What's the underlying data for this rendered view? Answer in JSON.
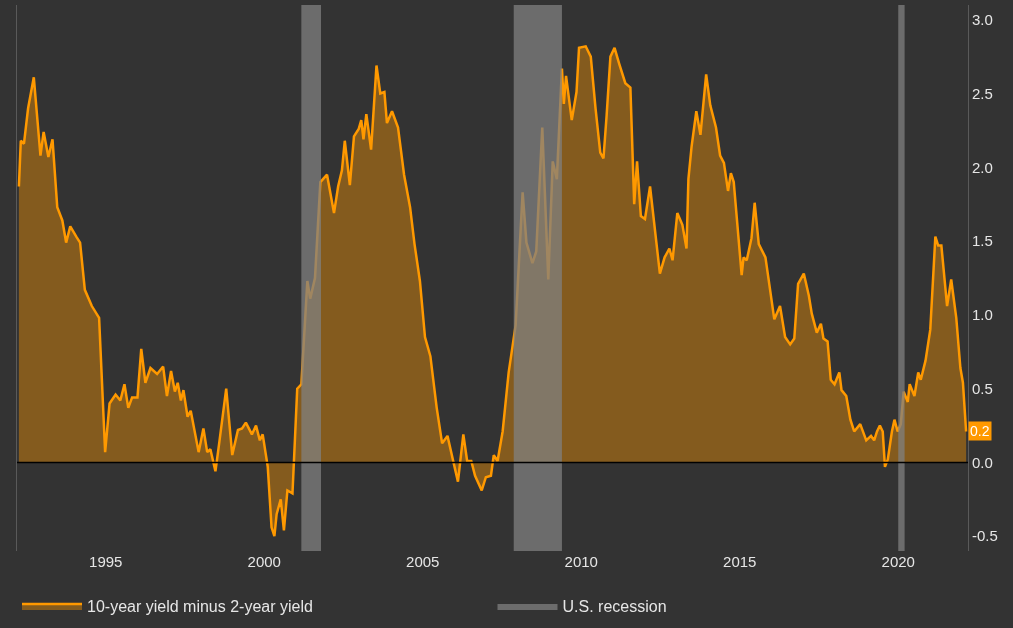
{
  "chart_data": {
    "type": "area",
    "x": [
      1992.26,
      1992.32,
      1992.42,
      1992.55,
      1992.73,
      1992.94,
      1993.04,
      1993.19,
      1993.32,
      1993.47,
      1993.63,
      1993.75,
      1993.88,
      1994.07,
      1994.19,
      1994.34,
      1994.56,
      1994.79,
      1994.98,
      1995.12,
      1995.31,
      1995.46,
      1995.59,
      1995.71,
      1995.83,
      1996.0,
      1996.12,
      1996.25,
      1996.41,
      1996.62,
      1996.81,
      1996.93,
      1997.06,
      1997.18,
      1997.27,
      1997.37,
      1997.45,
      1997.58,
      1997.68,
      1997.93,
      1998.08,
      1998.2,
      1998.3,
      1998.46,
      1998.59,
      1998.8,
      1998.99,
      1999.17,
      1999.3,
      1999.42,
      1999.61,
      1999.74,
      1999.86,
      1999.95,
      2000.11,
      2000.23,
      2000.32,
      2000.39,
      2000.52,
      2000.62,
      2000.73,
      2000.89,
      2001.04,
      2001.17,
      2001.36,
      2001.45,
      2001.6,
      2001.77,
      2001.98,
      2002.2,
      2002.33,
      2002.45,
      2002.54,
      2002.7,
      2002.83,
      2002.98,
      2003.06,
      2003.13,
      2003.22,
      2003.37,
      2003.54,
      2003.66,
      2003.79,
      2003.87,
      2004.03,
      2004.22,
      2004.41,
      2004.6,
      2004.74,
      2004.91,
      2005.07,
      2005.24,
      2005.44,
      2005.61,
      2005.78,
      2005.96,
      2006.11,
      2006.28,
      2006.4,
      2006.53,
      2006.65,
      2006.86,
      2006.99,
      2007.15,
      2007.24,
      2007.36,
      2007.52,
      2007.71,
      2007.93,
      2008.15,
      2008.27,
      2008.46,
      2008.58,
      2008.77,
      2008.96,
      2009.1,
      2009.23,
      2009.39,
      2009.45,
      2009.52,
      2009.7,
      2009.85,
      2009.93,
      2010.14,
      2010.3,
      2010.45,
      2010.6,
      2010.7,
      2010.8,
      2010.92,
      2011.05,
      2011.2,
      2011.39,
      2011.55,
      2011.67,
      2011.76,
      2011.88,
      2012.01,
      2012.17,
      2012.48,
      2012.63,
      2012.78,
      2012.88,
      2013.03,
      2013.19,
      2013.32,
      2013.38,
      2013.48,
      2013.63,
      2013.76,
      2013.94,
      2014.07,
      2014.25,
      2014.38,
      2014.5,
      2014.63,
      2014.72,
      2014.81,
      2015.06,
      2015.12,
      2015.22,
      2015.37,
      2015.47,
      2015.6,
      2015.81,
      2015.93,
      2016.09,
      2016.27,
      2016.43,
      2016.59,
      2016.72,
      2016.84,
      2017.02,
      2017.18,
      2017.27,
      2017.43,
      2017.56,
      2017.64,
      2017.77,
      2017.87,
      2017.99,
      2018.14,
      2018.21,
      2018.36,
      2018.49,
      2018.61,
      2018.8,
      2018.99,
      2019.14,
      2019.24,
      2019.33,
      2019.42,
      2019.51,
      2019.58,
      2019.67,
      2019.8,
      2019.88,
      2019.98,
      2020.08,
      2020.17,
      2020.3,
      2020.36,
      2020.51,
      2020.63,
      2020.71,
      2020.86,
      2021.01,
      2021.17,
      2021.26,
      2021.36,
      2021.54,
      2021.67,
      2021.83,
      2021.96,
      2022.04,
      2022.14
    ],
    "series": [
      {
        "name": "10-year yield minus 2-year yield",
        "color": "#ff9900",
        "values": [
          1.87,
          2.18,
          2.16,
          2.4,
          2.61,
          2.08,
          2.24,
          2.07,
          2.19,
          1.73,
          1.64,
          1.49,
          1.6,
          1.53,
          1.49,
          1.17,
          1.06,
          0.98,
          0.07,
          0.4,
          0.46,
          0.42,
          0.53,
          0.37,
          0.44,
          0.44,
          0.77,
          0.54,
          0.64,
          0.6,
          0.65,
          0.45,
          0.62,
          0.48,
          0.54,
          0.42,
          0.49,
          0.31,
          0.35,
          0.07,
          0.23,
          0.07,
          0.09,
          -0.06,
          0.15,
          0.5,
          0.05,
          0.22,
          0.23,
          0.27,
          0.19,
          0.25,
          0.15,
          0.19,
          -0.03,
          -0.44,
          -0.5,
          -0.35,
          -0.25,
          -0.46,
          -0.19,
          -0.21,
          0.5,
          0.53,
          1.23,
          1.11,
          1.25,
          1.9,
          1.95,
          1.69,
          1.87,
          1.98,
          2.18,
          1.88,
          2.21,
          2.26,
          2.32,
          2.19,
          2.36,
          2.12,
          2.69,
          2.5,
          2.51,
          2.3,
          2.38,
          2.27,
          1.95,
          1.73,
          1.48,
          1.23,
          0.85,
          0.72,
          0.37,
          0.13,
          0.18,
          0.01,
          -0.13,
          0.19,
          0.01,
          0.01,
          -0.09,
          -0.19,
          -0.1,
          -0.09,
          0.05,
          0.01,
          0.21,
          0.61,
          0.93,
          1.83,
          1.49,
          1.35,
          1.43,
          2.27,
          1.24,
          2.04,
          1.92,
          2.67,
          2.43,
          2.62,
          2.32,
          2.51,
          2.81,
          2.82,
          2.75,
          2.4,
          2.1,
          2.06,
          2.35,
          2.75,
          2.81,
          2.7,
          2.57,
          2.54,
          1.75,
          2.04,
          1.67,
          1.65,
          1.87,
          1.28,
          1.39,
          1.45,
          1.37,
          1.69,
          1.61,
          1.45,
          1.92,
          2.14,
          2.38,
          2.22,
          2.63,
          2.42,
          2.27,
          2.08,
          2.03,
          1.84,
          1.96,
          1.9,
          1.27,
          1.39,
          1.37,
          1.52,
          1.76,
          1.48,
          1.39,
          1.21,
          0.97,
          1.06,
          0.85,
          0.8,
          0.84,
          1.21,
          1.28,
          1.13,
          1.01,
          0.88,
          0.94,
          0.84,
          0.82,
          0.56,
          0.53,
          0.61,
          0.49,
          0.45,
          0.29,
          0.21,
          0.26,
          0.15,
          0.18,
          0.15,
          0.21,
          0.25,
          0.21,
          -0.03,
          0.02,
          0.21,
          0.29,
          0.21,
          0.26,
          0.48,
          0.41,
          0.53,
          0.45,
          0.61,
          0.56,
          0.69,
          0.9,
          1.53,
          1.47,
          1.47,
          1.06,
          1.24,
          0.98,
          0.64,
          0.54,
          0.21
        ]
      }
    ],
    "xlim": [
      1992.2,
      2022.2
    ],
    "xticks": [
      1995,
      2000,
      2005,
      2010,
      2015,
      2020
    ],
    "ylim": [
      -0.6,
      3.1
    ],
    "yticks": [
      {
        "value": -0.5,
        "label": "-0.5"
      },
      {
        "value": 0,
        "label": "0.0"
      },
      {
        "value": 0.5,
        "label": "0.5"
      },
      {
        "value": 1,
        "label": "1.0"
      },
      {
        "value": 1.5,
        "label": "1.5"
      },
      {
        "value": 2,
        "label": "2.0"
      },
      {
        "value": 2.5,
        "label": "2.5"
      },
      {
        "value": 3,
        "label": "3.0"
      }
    ],
    "bands": [
      {
        "axis": "x",
        "from": 2001.17,
        "to": 2001.79,
        "label": "U.S. recession",
        "color": "#808080"
      },
      {
        "axis": "x",
        "from": 2007.87,
        "to": 2009.39,
        "color": "#808080"
      },
      {
        "axis": "x",
        "from": 2020.0,
        "to": 2020.2,
        "color": "#808080"
      }
    ],
    "ref_lines": [
      {
        "axis": "y",
        "value": 0,
        "color": "#000000"
      }
    ],
    "annotations": [
      {
        "text": "0.2",
        "x": 2022.14,
        "y": 0.21
      }
    ],
    "legend": "bottom",
    "grid": false
  }
}
